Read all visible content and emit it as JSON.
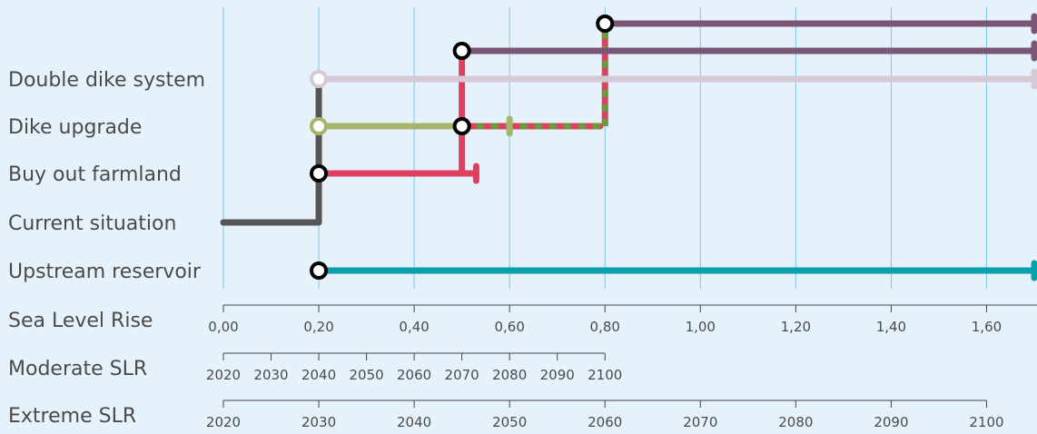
{
  "chart_data": {
    "type": "adaptation-pathways",
    "x_axis": {
      "label": "Sea Level Rise",
      "range": [
        0,
        1.7
      ],
      "ticks": [
        0,
        0.2,
        0.4,
        0.6,
        0.8,
        1.0,
        1.2,
        1.4,
        1.6
      ],
      "tick_labels": [
        "0,00",
        "0,20",
        "0,40",
        "0,60",
        "0,80",
        "1,00",
        "1,20",
        "1,40",
        "1,60"
      ],
      "grid": true
    },
    "secondary_axes": [
      {
        "label": "Moderate SLR",
        "ticks": [
          0,
          0.1,
          0.2,
          0.3,
          0.4,
          0.5,
          0.6,
          0.7,
          0.8
        ],
        "tick_labels": [
          "2020",
          "2030",
          "2040",
          "2050",
          "2060",
          "2070",
          "2080",
          "2090",
          "2100"
        ]
      },
      {
        "label": "Extreme SLR",
        "ticks": [
          0,
          0.2,
          0.4,
          0.6,
          0.8,
          1.0,
          1.2,
          1.4,
          1.6
        ],
        "tick_labels": [
          "2020",
          "2030",
          "2040",
          "2050",
          "2060",
          "2070",
          "2080",
          "2090",
          "2100"
        ]
      }
    ],
    "rows": [
      "Double dike system",
      "Dike upgrade",
      "Buy out farmland",
      "Current situation",
      "Upstream reservoir"
    ],
    "pathways": [
      {
        "id": "current",
        "row": "Current situation",
        "start": 0.0,
        "end": 0.2,
        "color": "#555555",
        "start_marker": "none",
        "end_marker": "none"
      },
      {
        "id": "reservoir",
        "row": "Upstream reservoir",
        "start": 0.2,
        "end": 1.7,
        "color": "#0b9fae",
        "start_marker": "circle-black",
        "end_marker": "cap"
      },
      {
        "id": "buyout",
        "row": "Buy out farmland",
        "start": 0.2,
        "end": 0.53,
        "color": "#e0405f",
        "start_marker": "circle-black",
        "end_marker": "cap"
      },
      {
        "id": "dike-upgrade",
        "row": "Dike upgrade",
        "start": 0.2,
        "end": 0.6,
        "color": "#a5b56a",
        "start_marker": "circle-green",
        "end_marker": "cap"
      },
      {
        "id": "double-dike",
        "row": "Double dike system",
        "start": 0.2,
        "end": 1.7,
        "color": "#d6c9d6",
        "start_marker": "circle-light",
        "end_marker": "cap"
      },
      {
        "id": "buyout-upgrade",
        "row": "Dike upgrade",
        "start": 0.5,
        "end": 0.79,
        "color": "#e0405f",
        "dash_color": "#6a9a3a",
        "start_marker": "circle-black",
        "end_marker": "none"
      },
      {
        "id": "buyout-double",
        "row": "upper-1",
        "start": 0.5,
        "end": 1.7,
        "color": "#7a5575",
        "start_marker": "circle-black",
        "end_marker": "cap"
      },
      {
        "id": "upgrade-double",
        "row": "upper-2",
        "start": 0.8,
        "end": 1.7,
        "color": "#7a5575",
        "start_marker": "circle-black",
        "end_marker": "cap"
      }
    ],
    "transfers": [
      {
        "x": 0.2,
        "from_row": "Current situation",
        "to_row": "Double dike system",
        "color": "#555555"
      },
      {
        "x": 0.5,
        "from_row": "Buy out farmland",
        "to_row": "upper-1",
        "color": "#e0405f"
      },
      {
        "x": 0.8,
        "from_row": "Dike upgrade",
        "to_row": "upper-2",
        "color": "#e0405f",
        "dash_color": "#6a9a3a"
      }
    ]
  }
}
